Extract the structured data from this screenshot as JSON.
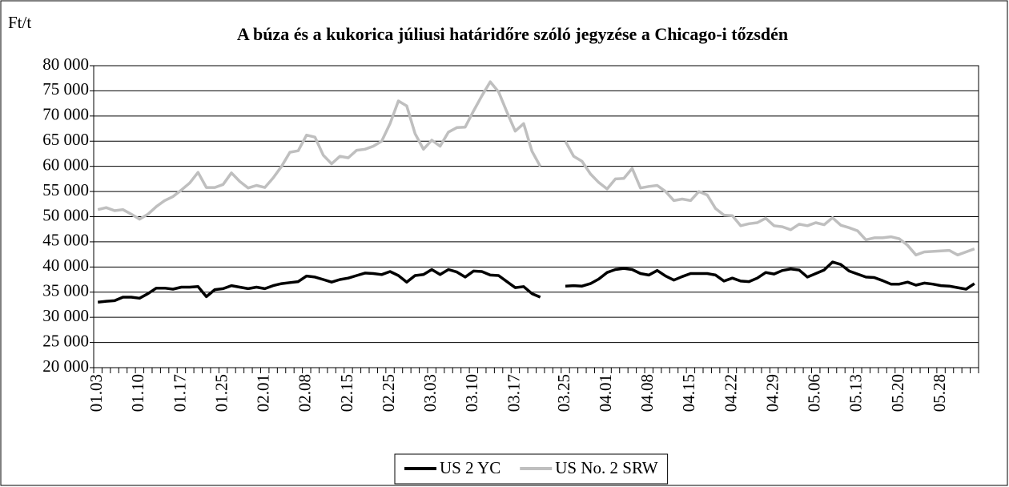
{
  "chart_data": {
    "type": "line",
    "title": "A búza és a kukorica júliusi határidőre szóló jegyzése a Chicago-i tőzsdén",
    "y_label": "Ft/t",
    "categories": [
      "01.03",
      null,
      null,
      null,
      null,
      "01.10",
      null,
      null,
      null,
      null,
      "01.17",
      null,
      null,
      null,
      null,
      "01.25",
      null,
      null,
      null,
      null,
      "02.01",
      null,
      null,
      null,
      null,
      "02.08",
      null,
      null,
      null,
      null,
      "02.15",
      null,
      null,
      null,
      null,
      "02.25",
      null,
      null,
      null,
      null,
      "03.03",
      null,
      null,
      null,
      null,
      "03.10",
      null,
      null,
      null,
      null,
      "03.17",
      null,
      null,
      null,
      null,
      null,
      "03.25",
      null,
      null,
      null,
      null,
      "04.01",
      null,
      null,
      null,
      null,
      "04.08",
      null,
      null,
      null,
      null,
      "04.15",
      null,
      null,
      null,
      null,
      "04.22",
      null,
      null,
      null,
      null,
      "04.29",
      null,
      null,
      null,
      null,
      "05.06",
      null,
      null,
      null,
      null,
      "05.13",
      null,
      null,
      null,
      null,
      "05.20",
      null,
      null,
      null,
      null,
      "05.28",
      null,
      null,
      null,
      null
    ],
    "series": [
      {
        "name": "US 2 YC",
        "color": "#000000",
        "values": [
          33000,
          33200,
          33300,
          34000,
          34000,
          33800,
          34700,
          35800,
          35800,
          35600,
          36000,
          36000,
          36100,
          34100,
          35500,
          35700,
          36300,
          36000,
          35700,
          36000,
          35700,
          36300,
          36700,
          36900,
          37100,
          38200,
          38000,
          37500,
          37000,
          37500,
          37800,
          38300,
          38800,
          38700,
          38500,
          39100,
          38300,
          37000,
          38300,
          38500,
          39500,
          38500,
          39500,
          39000,
          38000,
          39200,
          39100,
          38400,
          38300,
          37100,
          35900,
          36100,
          34700,
          34000,
          null,
          null,
          36200,
          36300,
          36200,
          36700,
          37600,
          38900,
          39500,
          39700,
          39500,
          38700,
          38400,
          39300,
          38200,
          37400,
          38100,
          38700,
          38700,
          38700,
          38400,
          37200,
          37800,
          37200,
          37100,
          37800,
          38900,
          38600,
          39300,
          39600,
          39400,
          38000,
          38700,
          39400,
          41000,
          40500,
          39200,
          38600,
          38000,
          37900,
          37300,
          36600,
          36600,
          37000,
          36400,
          36800,
          36600,
          36300,
          36200,
          35900,
          35600,
          36700
        ]
      },
      {
        "name": "US No. 2 SRW",
        "color": "#bfbfbf",
        "values": [
          51400,
          51800,
          51200,
          51400,
          50500,
          49500,
          50500,
          52000,
          53200,
          54000,
          55300,
          56700,
          58800,
          55800,
          55800,
          56400,
          58700,
          57000,
          55700,
          56200,
          55800,
          57700,
          60000,
          62800,
          63100,
          66200,
          65800,
          62200,
          60500,
          62000,
          61700,
          63200,
          63400,
          64000,
          65000,
          68500,
          73000,
          72000,
          66500,
          63400,
          65200,
          64000,
          66800,
          67700,
          67800,
          71000,
          74000,
          76800,
          74800,
          70800,
          67000,
          68500,
          63000,
          60000,
          null,
          null,
          65000,
          62000,
          61000,
          58500,
          56800,
          55500,
          57500,
          57600,
          59600,
          55700,
          56000,
          56200,
          55000,
          53200,
          53500,
          53200,
          55000,
          54300,
          51600,
          50300,
          50200,
          48200,
          48600,
          48800,
          49700,
          48200,
          48000,
          47400,
          48500,
          48200,
          48800,
          48400,
          49800,
          48300,
          47800,
          47200,
          45400,
          45800,
          45800,
          46000,
          45600,
          44300,
          42400,
          43000,
          43100,
          43200,
          43300,
          42400,
          43000,
          43600
        ]
      }
    ],
    "ylim": [
      20000,
      80000
    ],
    "yticks": [
      {
        "value": 20000,
        "label": "20 000"
      },
      {
        "value": 25000,
        "label": "25 000"
      },
      {
        "value": 30000,
        "label": "30 000"
      },
      {
        "value": 35000,
        "label": "35 000"
      },
      {
        "value": 40000,
        "label": "40 000"
      },
      {
        "value": 45000,
        "label": "45 000"
      },
      {
        "value": 50000,
        "label": "50 000"
      },
      {
        "value": 55000,
        "label": "55 000"
      },
      {
        "value": 60000,
        "label": "60 000"
      },
      {
        "value": 65000,
        "label": "65 000"
      },
      {
        "value": 70000,
        "label": "70 000"
      },
      {
        "value": 75000,
        "label": "75 000"
      },
      {
        "value": 80000,
        "label": "80 000"
      }
    ],
    "grid": true,
    "legend": "bottom"
  }
}
